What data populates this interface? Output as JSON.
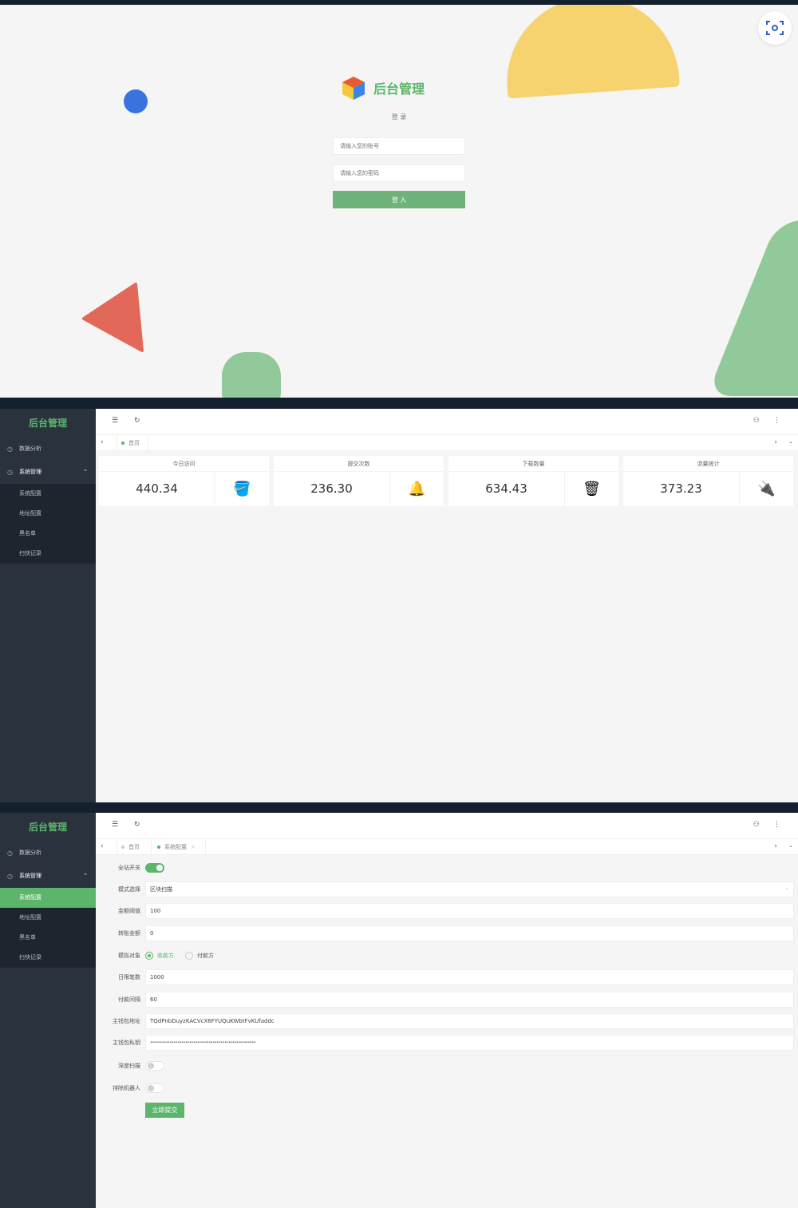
{
  "login": {
    "title": "后台管理",
    "subtitle": "登 录",
    "account_placeholder": "请输入您的账号",
    "password_placeholder": "请输入您的密码",
    "submit_label": "登 入",
    "scan_icon": "scan-camera-icon"
  },
  "app": {
    "title": "后台管理",
    "accent": "#5bb56a",
    "sidebar": {
      "items": [
        {
          "label": "数据分析",
          "icon": "dashboard-icon"
        },
        {
          "label": "系统管理",
          "icon": "dashboard-icon",
          "expanded": true
        }
      ],
      "sub_items": [
        {
          "label": "系统配置"
        },
        {
          "label": "地址配置"
        },
        {
          "label": "黑名单"
        },
        {
          "label": "扫快记录"
        }
      ]
    },
    "tabs": {
      "home": "首页",
      "config": "系统配置"
    }
  },
  "dashboard": {
    "cards": [
      {
        "title": "今日访问",
        "value": "440.34",
        "icon": "paint-bucket-icon"
      },
      {
        "title": "提交次数",
        "value": "236.30",
        "icon": "lamp-icon"
      },
      {
        "title": "下载数量",
        "value": "634.43",
        "icon": "trash-can-icon"
      },
      {
        "title": "流量统计",
        "value": "373.23",
        "icon": "plug-icon"
      }
    ]
  },
  "config_form": {
    "site_switch": {
      "label": "全站开关",
      "on": true
    },
    "mode": {
      "label": "模式选择",
      "value": "区块扫描"
    },
    "amount_threshold": {
      "label": "金额阈值",
      "value": "100"
    },
    "transfer_amount": {
      "label": "转账金额",
      "value": "0"
    },
    "simulate_target": {
      "label": "模拟对象",
      "options": [
        "收款方",
        "付款方"
      ],
      "selected": "收款方"
    },
    "daily_limit": {
      "label": "日限笔数",
      "value": "1000"
    },
    "pay_interval": {
      "label": "付款间隔",
      "value": "60"
    },
    "wallet_address": {
      "label": "主钱包地址",
      "value": "TQdPnbDuyzKACVcX6FYUQuKWbtFvKUfaddc"
    },
    "wallet_key": {
      "label": "主钱包私钥",
      "value": "••••••••••••••••••••••••••••••••••••••••••••••••••••••"
    },
    "deep_scan": {
      "label": "深度扫描",
      "on": false
    },
    "exclude_bots": {
      "label": "排除机器人",
      "on": false
    },
    "submit_label": "立即提交"
  }
}
